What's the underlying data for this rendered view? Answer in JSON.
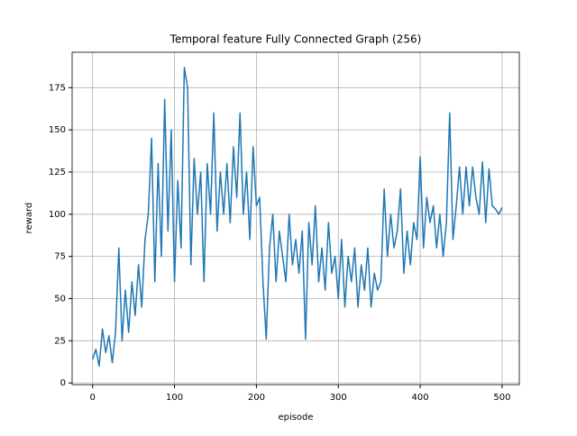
{
  "chart_data": {
    "type": "line",
    "title": "Temporal feature Fully Connected Graph (256)",
    "xlabel": "episode",
    "ylabel": "reward",
    "x": [
      0,
      4,
      8,
      12,
      16,
      20,
      24,
      28,
      32,
      36,
      40,
      44,
      48,
      52,
      56,
      60,
      64,
      68,
      72,
      76,
      80,
      84,
      88,
      92,
      96,
      100,
      104,
      108,
      112,
      116,
      120,
      124,
      128,
      132,
      136,
      140,
      144,
      148,
      152,
      156,
      160,
      164,
      168,
      172,
      176,
      180,
      184,
      188,
      192,
      196,
      200,
      204,
      208,
      212,
      216,
      220,
      224,
      228,
      232,
      236,
      240,
      244,
      248,
      252,
      256,
      260,
      264,
      268,
      272,
      276,
      280,
      284,
      288,
      292,
      296,
      300,
      304,
      308,
      312,
      316,
      320,
      324,
      328,
      332,
      336,
      340,
      344,
      348,
      352,
      356,
      360,
      364,
      368,
      372,
      376,
      380,
      384,
      388,
      392,
      396,
      400,
      404,
      408,
      412,
      416,
      420,
      424,
      428,
      432,
      436,
      440,
      444,
      448,
      452,
      456,
      460,
      464,
      468,
      472,
      476,
      480,
      484,
      488,
      492,
      496,
      500
    ],
    "series": [
      {
        "name": "reward",
        "color": "#1f77b4",
        "values": [
          14,
          20,
          10,
          32,
          18,
          28,
          12,
          30,
          80,
          25,
          55,
          30,
          60,
          40,
          70,
          45,
          85,
          100,
          145,
          60,
          130,
          75,
          168,
          90,
          150,
          60,
          120,
          80,
          187,
          175,
          70,
          133,
          100,
          125,
          60,
          130,
          100,
          160,
          90,
          125,
          100,
          130,
          95,
          140,
          110,
          160,
          100,
          125,
          85,
          140,
          105,
          110,
          60,
          26,
          80,
          100,
          60,
          90,
          75,
          60,
          100,
          70,
          85,
          65,
          90,
          26,
          95,
          70,
          105,
          60,
          80,
          55,
          95,
          65,
          75,
          50,
          85,
          45,
          75,
          60,
          80,
          45,
          70,
          55,
          80,
          45,
          65,
          55,
          60,
          115,
          75,
          100,
          80,
          90,
          115,
          65,
          90,
          70,
          95,
          85,
          134,
          80,
          110,
          95,
          105,
          80,
          100,
          75,
          95,
          160,
          85,
          105,
          128,
          100,
          128,
          105,
          128,
          110,
          100,
          131,
          95,
          127,
          105,
          103,
          100,
          104
        ]
      }
    ],
    "xlim": [
      -25,
      521
    ],
    "ylim": [
      -1,
      196
    ],
    "xticks": [
      0,
      100,
      200,
      300,
      400,
      500
    ],
    "yticks": [
      0,
      25,
      50,
      75,
      100,
      125,
      150,
      175
    ],
    "grid": true
  }
}
